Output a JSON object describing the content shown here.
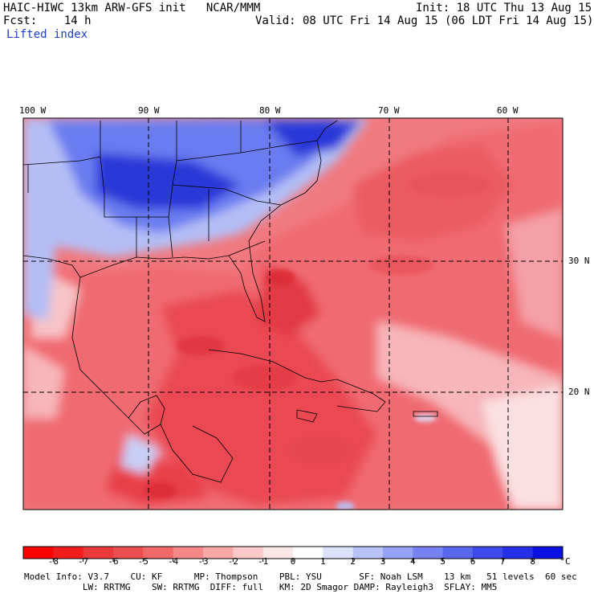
{
  "header": {
    "model_line": "HAIC-HIWC 13km ARW-GFS init   NCAR/MMM",
    "fcst_line": "Fcst:    14 h",
    "field_line": "Lifted index",
    "init_line": "Init: 18 UTC Thu 13 Aug 15",
    "valid_line": "Valid: 08 UTC Fri 14 Aug 15 (06 LDT Fri 14 Aug 15)"
  },
  "map": {
    "lon_labels": [
      "100 W",
      "90 W",
      "80 W",
      "70 W",
      "60 W"
    ],
    "lat_labels": [
      "30 N",
      "20 N"
    ],
    "colors": {
      "ocean_unstable": "#f0646e",
      "strong_unstable": "#e4323c",
      "mild_unstable": "#f8b4b8",
      "neutral": "#fbe4e4",
      "stable_light": "#b4bef5",
      "stable": "#5a6ef0",
      "stable_strong": "#1e28d2",
      "lines": "#000000"
    }
  },
  "colorbar": {
    "labels": [
      "-8",
      "-7",
      "-6",
      "-5",
      "-4",
      "-3",
      "-2",
      "-1",
      "0",
      "1",
      "2",
      "3",
      "4",
      "5",
      "6",
      "7",
      "8"
    ],
    "unit": "°C",
    "colors": [
      "#ff0000",
      "#f21c1c",
      "#ec3a3a",
      "#ea4e4e",
      "#f06868",
      "#f48888",
      "#f8a8a8",
      "#fcc8c8",
      "#fde6e6",
      "#ffffff",
      "#dde2fb",
      "#b8c2f7",
      "#96a2f3",
      "#7682f0",
      "#5a66ee",
      "#3e4aeb",
      "#2430e8",
      "#0a10e0"
    ]
  },
  "info": {
    "line1": "Model Info: V3.7    CU: KF      MP: Thompson    PBL: YSU       SF: Noah LSM    13 km   51 levels  60 sec",
    "line2": "           LW: RRTMG    SW: RRTMG  DIFF: full   KM: 2D Smagor DAMP: Rayleigh3  SFLAY: MM5"
  }
}
